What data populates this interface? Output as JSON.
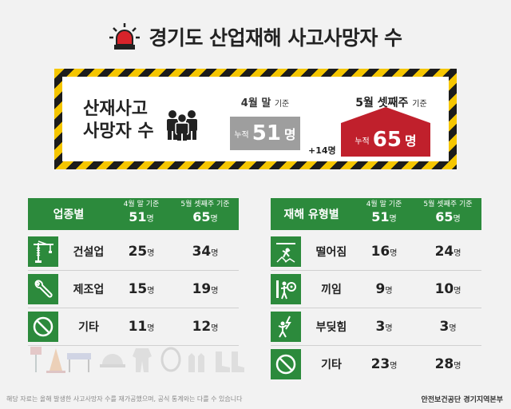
{
  "header": {
    "title": "경기도 산업재해 사고사망자 수",
    "icon": "siren-icon"
  },
  "banner": {
    "label_line1": "산재사고",
    "label_line2": "사망자 수",
    "april_caption_main": "4월 말",
    "april_caption_small": "기준",
    "april_prefix": "누적",
    "april_value": "51",
    "april_unit": "명",
    "may_caption_main": "5월 셋째주",
    "may_caption_small": "기준",
    "may_prefix": "누적",
    "may_value": "65",
    "may_unit": "명",
    "increase": "+14명",
    "colors": {
      "accent_red": "#c0202c",
      "gray": "#9e9e9e",
      "hazard_yellow": "#f5c600"
    }
  },
  "industry_table": {
    "title": "업종별",
    "col1_caption": "4월 말 기준",
    "col1_total": "51",
    "col2_caption": "5월 셋째주 기준",
    "col2_total": "65",
    "unit": "명",
    "rows": [
      {
        "icon": "crane-icon",
        "label": "건설업",
        "april": "25",
        "may": "34",
        "unit": "명"
      },
      {
        "icon": "wrench-icon",
        "label": "제조업",
        "april": "15",
        "may": "19",
        "unit": "명"
      },
      {
        "icon": "no-sign-icon",
        "label": "기타",
        "april": "11",
        "may": "12",
        "unit": "명"
      }
    ]
  },
  "type_table": {
    "title": "재해 유형별",
    "col1_caption": "4월 말 기준",
    "col1_total": "51",
    "col2_caption": "5월 셋째주 기준",
    "col2_total": "65",
    "unit": "명",
    "rows": [
      {
        "icon": "falling-icon",
        "label": "떨어짐",
        "april": "16",
        "may": "24",
        "unit": "명"
      },
      {
        "icon": "caught-icon",
        "label": "끼임",
        "april": "9",
        "may": "10",
        "unit": "명"
      },
      {
        "icon": "electric-shock-icon",
        "label": "부딪힘",
        "april": "3",
        "may": "3",
        "unit": "명"
      },
      {
        "icon": "no-sign-icon",
        "label": "기타",
        "april": "23",
        "may": "28",
        "unit": "명"
      }
    ]
  },
  "footer": {
    "note": "해당 자료는 올해 발생한 사고사망자 수를 재가공했으며, 공식 통계와는 다를 수 있습니다",
    "org": "안전보건공단 경기지역본부"
  },
  "colors": {
    "green": "#2c8a3c",
    "background": "#f2f2f2"
  }
}
